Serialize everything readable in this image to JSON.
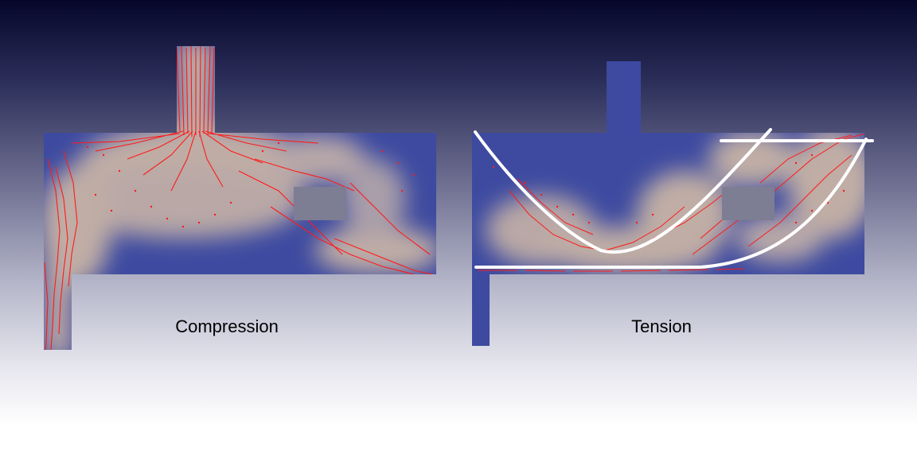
{
  "panels": [
    {
      "id": "compression",
      "label": "Compression"
    },
    {
      "id": "tension",
      "label": "Tension"
    }
  ],
  "colors": {
    "low_stress": "#3d4aa0",
    "high_stress": "#c0ada5",
    "vectors": "#ff1a1a",
    "tension_lines": "#ffffff"
  }
}
